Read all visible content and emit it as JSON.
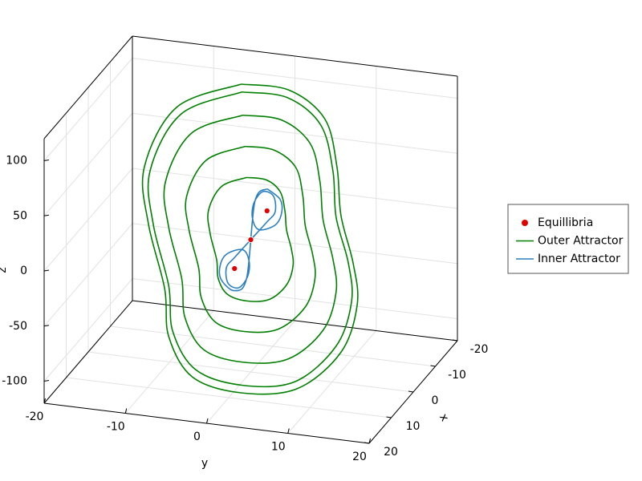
{
  "chart_data": {
    "type": "line3d",
    "axis_labels": {
      "x": "x",
      "y": "y",
      "z": "z"
    },
    "xlim": [
      -20,
      20
    ],
    "ylim": [
      -20,
      20
    ],
    "zlim": [
      -120,
      120
    ],
    "xticks": [
      -20,
      -10,
      0,
      10,
      20
    ],
    "yticks": [
      -20,
      -10,
      0,
      10,
      20
    ],
    "zticks": [
      -100,
      -50,
      0,
      50,
      100
    ],
    "grid": true,
    "legend": "right",
    "series": [
      {
        "name": "Outer Attractor",
        "color": "#008000",
        "mode": "lines",
        "x": [
          0,
          0,
          0,
          0,
          0,
          0,
          0,
          0,
          0,
          0,
          0,
          0,
          0,
          0,
          0,
          0,
          0,
          null,
          0,
          0,
          0,
          0,
          0,
          0,
          0,
          0,
          0,
          0,
          0,
          0,
          0,
          0,
          0,
          0,
          0,
          null,
          0,
          0,
          0,
          0,
          0,
          0,
          0,
          0,
          0,
          0,
          0,
          0,
          0,
          0,
          0,
          0,
          0,
          null,
          0,
          0,
          0,
          0,
          0,
          0,
          0,
          0,
          0,
          0,
          0,
          0,
          0,
          0,
          0,
          0,
          0,
          null,
          0,
          0,
          0,
          0,
          0,
          0,
          0,
          0,
          0,
          0,
          0,
          0,
          0,
          0,
          0,
          0,
          0
        ],
        "y": [
          -1.2,
          4.7,
          9.1,
          10.6,
          11.1,
          12.6,
          13.1,
          11.1,
          5.7,
          -1.2,
          -7.2,
          -10.1,
          -10.6,
          -12.6,
          -13.1,
          -9.1,
          -1.2,
          null,
          -1.1,
          4.5,
          8.6,
          10.1,
          10.5,
          12.0,
          12.4,
          10.5,
          5.4,
          -1.1,
          -6.8,
          -9.6,
          -10.1,
          -12.0,
          -12.4,
          -8.6,
          -1.1,
          null,
          -1.0,
          3.8,
          7.3,
          8.5,
          8.9,
          10.1,
          10.5,
          8.9,
          4.6,
          -1.0,
          -5.8,
          -8.1,
          -8.5,
          -10.1,
          -10.5,
          -7.3,
          -1.0,
          null,
          -0.7,
          2.8,
          5.5,
          6.4,
          6.7,
          7.6,
          7.9,
          6.7,
          3.4,
          -0.7,
          -4.3,
          -6.1,
          -6.4,
          -7.6,
          -7.9,
          -5.5,
          -0.7,
          null,
          -0.5,
          1.9,
          3.6,
          4.2,
          4.4,
          5.0,
          5.2,
          4.4,
          2.3,
          -0.5,
          -2.9,
          -4.0,
          -4.2,
          -5.0,
          -5.2,
          -3.6,
          -0.5
        ],
        "z": [
          140,
          140,
          118,
          76,
          32,
          -10,
          -47,
          -92,
          -130,
          -140,
          -131,
          -97,
          -54,
          3,
          54,
          112,
          140,
          null,
          133,
          133,
          112,
          72,
          30,
          -10,
          -45,
          -87,
          -124,
          -133,
          -124,
          -92,
          -51,
          3,
          51,
          106,
          133,
          null,
          112,
          112,
          94,
          61,
          26,
          -8,
          -38,
          -74,
          -104,
          -112,
          -105,
          -78,
          -43,
          2,
          43,
          90,
          112,
          null,
          84,
          84,
          71,
          46,
          19,
          -6,
          -28,
          -55,
          -78,
          -84,
          -79,
          -58,
          -32,
          2,
          32,
          67,
          84,
          null,
          56,
          56,
          47,
          30,
          13,
          -4,
          -19,
          -37,
          -52,
          -56,
          -52,
          -39,
          -22,
          1,
          22,
          45,
          56
        ]
      },
      {
        "name": "Inner Attractor",
        "color": "#2a7fc0",
        "mode": "lines",
        "x": [
          0,
          0,
          0,
          0,
          0,
          0,
          0,
          0,
          0,
          0,
          0,
          0,
          0,
          0,
          0,
          0,
          0,
          0,
          0,
          0,
          0,
          0,
          0,
          0,
          0,
          0
        ],
        "y": [
          2,
          3.6,
          3.8,
          3,
          1,
          0.2,
          0.4,
          1.5,
          2.8,
          3,
          2,
          0,
          -2,
          -3,
          -2.8,
          -1.5,
          -0.4,
          -0.2,
          -1,
          -3,
          -3.8,
          -3.6,
          -2,
          -0.5,
          0.5,
          2
        ],
        "z": [
          48,
          40,
          28,
          16,
          10,
          20,
          34,
          45,
          42,
          28,
          18,
          0,
          -18,
          -28,
          -42,
          -45,
          -34,
          -20,
          -10,
          -16,
          -28,
          -40,
          -48,
          -35,
          35,
          48
        ]
      },
      {
        "name": "Equillibria",
        "color": "#e00000",
        "mode": "markers",
        "x": [
          0,
          0,
          0
        ],
        "y": [
          -2,
          0,
          2
        ],
        "z": [
          -28,
          0,
          28
        ]
      }
    ]
  }
}
